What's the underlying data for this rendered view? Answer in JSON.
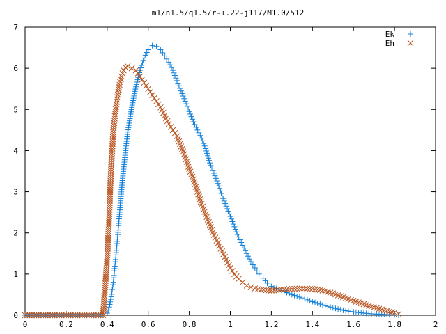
{
  "chart_data": {
    "type": "scatter",
    "title": "m1/n1.5/q1.5/r-+.22-j117/M1.0/512",
    "xlabel": "",
    "ylabel": "",
    "xlim": [
      0,
      2
    ],
    "ylim": [
      0,
      7
    ],
    "x_ticks": [
      "0",
      "0.2",
      "0.4",
      "0.6",
      "0.8",
      "1",
      "1.2",
      "1.4",
      "1.6",
      "1.8",
      "2"
    ],
    "y_ticks": [
      "0",
      "1",
      "2",
      "3",
      "4",
      "5",
      "6",
      "7"
    ],
    "grid": false,
    "legend_position": "top-right",
    "series": [
      {
        "name": "Ek",
        "marker": "plus",
        "color": "#0f7fd8",
        "points": [
          [
            0.0,
            0.0
          ],
          [
            0.1,
            0.0
          ],
          [
            0.2,
            0.0
          ],
          [
            0.3,
            0.0
          ],
          [
            0.38,
            0.0
          ],
          [
            0.4,
            0.05
          ],
          [
            0.41,
            0.2
          ],
          [
            0.42,
            0.45
          ],
          [
            0.43,
            0.8
          ],
          [
            0.44,
            1.3
          ],
          [
            0.45,
            1.85
          ],
          [
            0.46,
            2.45
          ],
          [
            0.47,
            3.05
          ],
          [
            0.48,
            3.55
          ],
          [
            0.49,
            4.0
          ],
          [
            0.5,
            4.45
          ],
          [
            0.52,
            5.05
          ],
          [
            0.54,
            5.55
          ],
          [
            0.56,
            5.95
          ],
          [
            0.58,
            6.25
          ],
          [
            0.6,
            6.45
          ],
          [
            0.62,
            6.55
          ],
          [
            0.64,
            6.53
          ],
          [
            0.66,
            6.45
          ],
          [
            0.68,
            6.3
          ],
          [
            0.7,
            6.15
          ],
          [
            0.72,
            5.95
          ],
          [
            0.74,
            5.7
          ],
          [
            0.76,
            5.45
          ],
          [
            0.78,
            5.2
          ],
          [
            0.8,
            4.95
          ],
          [
            0.82,
            4.7
          ],
          [
            0.84,
            4.5
          ],
          [
            0.86,
            4.3
          ],
          [
            0.88,
            4.05
          ],
          [
            0.9,
            3.7
          ],
          [
            0.92,
            3.45
          ],
          [
            0.94,
            3.2
          ],
          [
            0.96,
            2.9
          ],
          [
            0.98,
            2.65
          ],
          [
            1.0,
            2.4
          ],
          [
            1.02,
            2.15
          ],
          [
            1.04,
            1.9
          ],
          [
            1.06,
            1.7
          ],
          [
            1.08,
            1.5
          ],
          [
            1.1,
            1.3
          ],
          [
            1.12,
            1.15
          ],
          [
            1.14,
            1.0
          ],
          [
            1.16,
            0.9
          ],
          [
            1.18,
            0.78
          ],
          [
            1.2,
            0.7
          ],
          [
            1.25,
            0.6
          ],
          [
            1.3,
            0.5
          ],
          [
            1.35,
            0.42
          ],
          [
            1.4,
            0.33
          ],
          [
            1.45,
            0.25
          ],
          [
            1.5,
            0.18
          ],
          [
            1.55,
            0.12
          ],
          [
            1.6,
            0.08
          ],
          [
            1.65,
            0.05
          ],
          [
            1.7,
            0.03
          ],
          [
            1.75,
            0.02
          ],
          [
            1.8,
            0.01
          ],
          [
            1.82,
            0.0
          ]
        ]
      },
      {
        "name": "Eh",
        "marker": "cross",
        "color": "#b8531e",
        "points": [
          [
            0.0,
            0.0
          ],
          [
            0.1,
            0.0
          ],
          [
            0.2,
            0.0
          ],
          [
            0.3,
            0.0
          ],
          [
            0.38,
            0.0
          ],
          [
            0.4,
            1.35
          ],
          [
            0.41,
            2.4
          ],
          [
            0.415,
            3.1
          ],
          [
            0.42,
            3.65
          ],
          [
            0.425,
            4.05
          ],
          [
            0.43,
            4.5
          ],
          [
            0.44,
            4.95
          ],
          [
            0.45,
            5.3
          ],
          [
            0.46,
            5.6
          ],
          [
            0.47,
            5.8
          ],
          [
            0.48,
            5.95
          ],
          [
            0.49,
            6.02
          ],
          [
            0.5,
            6.05
          ],
          [
            0.52,
            6.0
          ],
          [
            0.54,
            5.95
          ],
          [
            0.56,
            5.8
          ],
          [
            0.58,
            5.65
          ],
          [
            0.6,
            5.5
          ],
          [
            0.62,
            5.35
          ],
          [
            0.64,
            5.2
          ],
          [
            0.66,
            5.05
          ],
          [
            0.68,
            4.85
          ],
          [
            0.7,
            4.65
          ],
          [
            0.72,
            4.5
          ],
          [
            0.74,
            4.35
          ],
          [
            0.76,
            4.1
          ],
          [
            0.78,
            3.85
          ],
          [
            0.8,
            3.55
          ],
          [
            0.82,
            3.3
          ],
          [
            0.84,
            3.0
          ],
          [
            0.86,
            2.7
          ],
          [
            0.88,
            2.45
          ],
          [
            0.9,
            2.2
          ],
          [
            0.92,
            1.95
          ],
          [
            0.94,
            1.75
          ],
          [
            0.96,
            1.55
          ],
          [
            0.98,
            1.35
          ],
          [
            1.0,
            1.15
          ],
          [
            1.02,
            1.0
          ],
          [
            1.04,
            0.88
          ],
          [
            1.06,
            0.8
          ],
          [
            1.08,
            0.72
          ],
          [
            1.1,
            0.68
          ],
          [
            1.12,
            0.65
          ],
          [
            1.15,
            0.62
          ],
          [
            1.2,
            0.6
          ],
          [
            1.25,
            0.62
          ],
          [
            1.3,
            0.64
          ],
          [
            1.35,
            0.65
          ],
          [
            1.4,
            0.64
          ],
          [
            1.45,
            0.6
          ],
          [
            1.5,
            0.53
          ],
          [
            1.55,
            0.44
          ],
          [
            1.6,
            0.35
          ],
          [
            1.65,
            0.27
          ],
          [
            1.7,
            0.19
          ],
          [
            1.75,
            0.12
          ],
          [
            1.8,
            0.06
          ],
          [
            1.82,
            0.03
          ]
        ]
      }
    ]
  }
}
